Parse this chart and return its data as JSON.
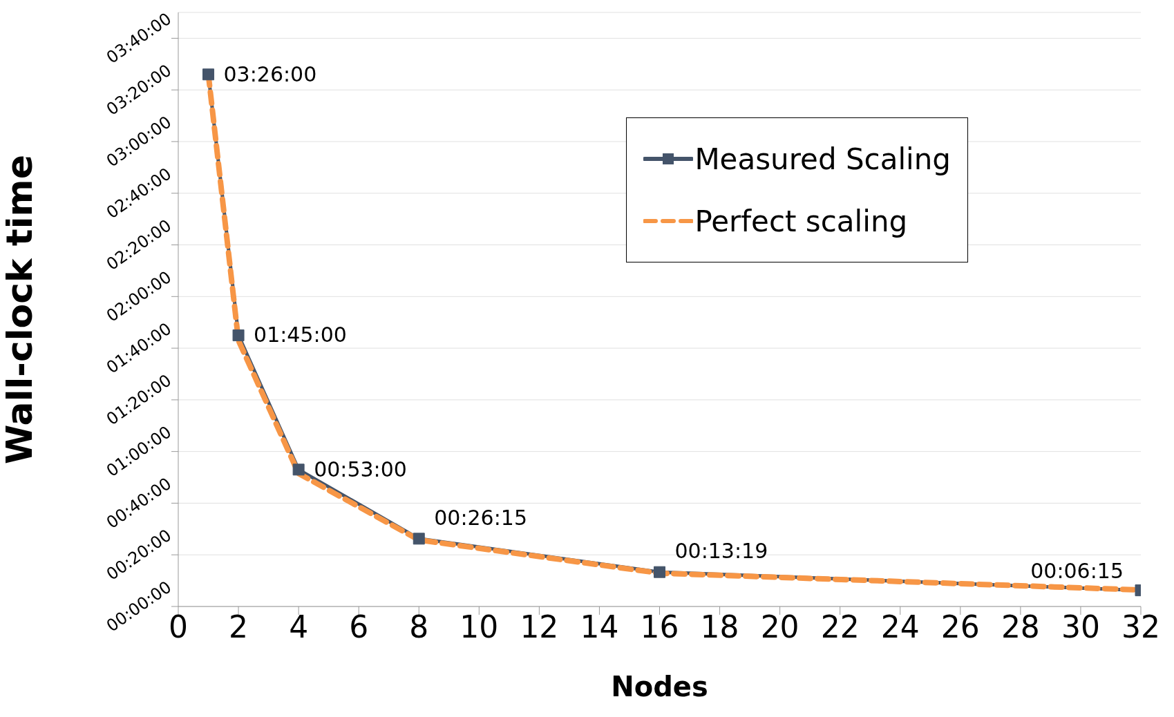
{
  "chart_data": {
    "type": "line",
    "xlabel": "Nodes",
    "ylabel": "Wall-clock time",
    "x": [
      1,
      2,
      4,
      8,
      16,
      32
    ],
    "series": [
      {
        "name": "Measured Scaling",
        "color": "#44546a",
        "values": [
          206,
          105,
          53,
          26.25,
          13.3167,
          6.25
        ],
        "marker": "square",
        "line_style": "solid",
        "value_labels": [
          "03:26:00",
          "01:45:00",
          "00:53:00",
          "00:26:15",
          "00:13:19",
          "00:06:15"
        ]
      },
      {
        "name": "Perfect scaling",
        "color": "#f79646",
        "values": [
          206,
          103,
          51.5,
          25.75,
          12.9,
          6.4
        ],
        "marker": "none",
        "line_style": "dashed"
      }
    ],
    "xlim": [
      0,
      32
    ],
    "xticks": [
      0,
      2,
      4,
      6,
      8,
      10,
      12,
      14,
      16,
      18,
      20,
      22,
      24,
      26,
      28,
      30,
      32
    ],
    "ylim": [
      0,
      230
    ],
    "yticks": [
      {
        "value": 0,
        "label": "00:00:00"
      },
      {
        "value": 20,
        "label": "00:20:00"
      },
      {
        "value": 40,
        "label": "00:40:00"
      },
      {
        "value": 60,
        "label": "01:00:00"
      },
      {
        "value": 80,
        "label": "01:20:00"
      },
      {
        "value": 100,
        "label": "01:40:00"
      },
      {
        "value": 120,
        "label": "02:00:00"
      },
      {
        "value": 140,
        "label": "02:20:00"
      },
      {
        "value": 160,
        "label": "02:40:00"
      },
      {
        "value": 180,
        "label": "03:00:00"
      },
      {
        "value": 200,
        "label": "03:20:00"
      },
      {
        "value": 220,
        "label": "03:40:00"
      }
    ],
    "grid": "y",
    "legend": "top right"
  }
}
